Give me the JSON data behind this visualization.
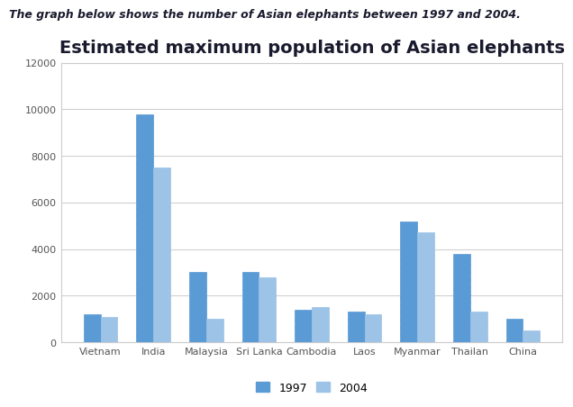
{
  "title": "Estimated maximum population of Asian elephants",
  "subtitle": "The graph below shows the number of Asian elephants between 1997 and 2004.",
  "categories": [
    "Vietnam",
    "India",
    "Malaysia",
    "Sri Lanka",
    "Cambodia",
    "Laos",
    "Myanmar",
    "Thailan",
    "China"
  ],
  "values_1997": [
    1200,
    9800,
    3000,
    3000,
    1400,
    1300,
    5200,
    3800,
    1000
  ],
  "values_2004": [
    1100,
    7500,
    1000,
    2800,
    1500,
    1200,
    4700,
    1300,
    500
  ],
  "bar_color": "#5B9BD5",
  "bar_color_2004": "#9DC3E6",
  "ylim": [
    0,
    12000
  ],
  "yticks": [
    0,
    2000,
    4000,
    6000,
    8000,
    10000,
    12000
  ],
  "legend_labels": [
    "1997",
    "2004"
  ],
  "hatch_1997": "////",
  "hatch_2004": "....",
  "bar_width": 0.32,
  "title_fontsize": 14,
  "tick_fontsize": 8,
  "subtitle_fontsize": 9
}
